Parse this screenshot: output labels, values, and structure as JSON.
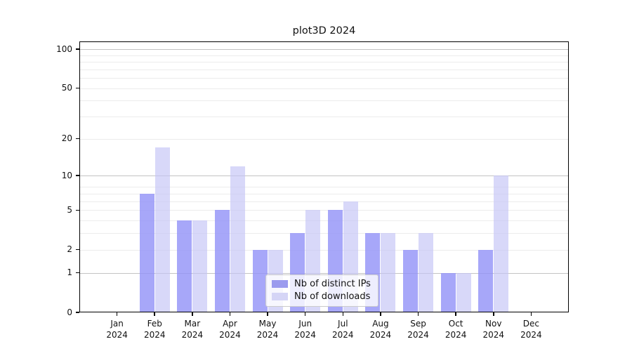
{
  "title": "plot3D 2024",
  "chart_data": {
    "type": "bar",
    "title": "plot3D 2024",
    "categories": [
      "Jan",
      "Feb",
      "Mar",
      "Apr",
      "May",
      "Jun",
      "Jul",
      "Aug",
      "Sep",
      "Oct",
      "Nov",
      "Dec"
    ],
    "year": "2024",
    "series": [
      {
        "name": "Nb of distinct IPs",
        "values": [
          0,
          7,
          4,
          5,
          2,
          3,
          5,
          3,
          2,
          1,
          2,
          0
        ]
      },
      {
        "name": "Nb of downloads",
        "values": [
          0,
          17,
          4,
          12,
          2,
          5,
          6,
          3,
          3,
          1,
          10,
          0
        ]
      }
    ],
    "y_scale": "log1p",
    "y_ticks": [
      0,
      1,
      2,
      5,
      10,
      20,
      50,
      100
    ],
    "y_max": 114,
    "ylim": [
      0,
      114
    ],
    "grid": {
      "major": [
        1,
        10,
        100
      ],
      "minor": [
        2,
        3,
        4,
        5,
        6,
        7,
        8,
        20,
        30,
        40,
        50,
        60,
        70,
        80,
        90
      ]
    },
    "legend_position": "inside lower-center",
    "xlabel": "",
    "ylabel": ""
  },
  "colors": {
    "bar_ips": "rgba(148,148,248,0.82)",
    "bar_downloads": "rgba(196,196,246,0.66)",
    "legend_swatch_ips": "#9b9bee",
    "legend_swatch_downloads": "#d5d5f6",
    "grid_major": "#c3c3c3",
    "grid_minor": "#ececec",
    "axis": "#000000",
    "text": "#111111",
    "background": "#ffffff"
  }
}
